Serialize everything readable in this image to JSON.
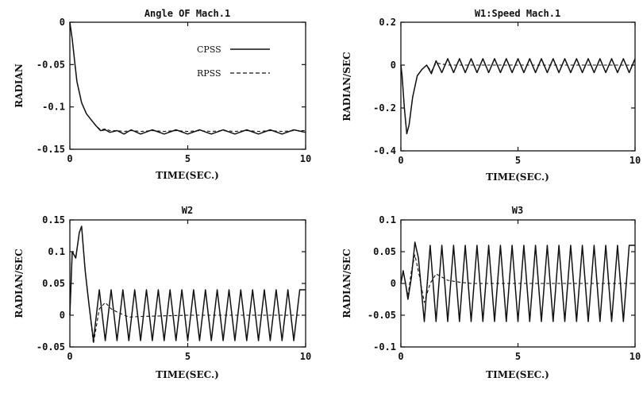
{
  "chart_data": [
    {
      "type": "line",
      "title": "Angle OF Mach.1",
      "xlabel": "TIME(SEC.)",
      "ylabel": "RADIAN",
      "xlim": [
        0,
        10
      ],
      "ylim": [
        -0.15,
        0
      ],
      "xticks": [
        "0",
        "5",
        "10"
      ],
      "yticks": [
        "0",
        "-0.05",
        "-0.1",
        "-0.15"
      ],
      "legend": {
        "position": "top-right",
        "entries": [
          "CPSS",
          "RPSS"
        ]
      },
      "series": [
        {
          "name": "CPSS",
          "style": "solid",
          "x": [
            0,
            0.1,
            0.2,
            0.3,
            0.5,
            0.7,
            0.9,
            1.1,
            1.3,
            1.5,
            1.7,
            2,
            2.3,
            2.6,
            3,
            3.5,
            4,
            4.5,
            5,
            5.5,
            6,
            6.5,
            7,
            7.5,
            8,
            8.5,
            9,
            9.5,
            10
          ],
          "y": [
            0,
            -0.02,
            -0.045,
            -0.07,
            -0.095,
            -0.108,
            -0.115,
            -0.122,
            -0.128,
            -0.127,
            -0.13,
            -0.128,
            -0.132,
            -0.127,
            -0.132,
            -0.127,
            -0.132,
            -0.127,
            -0.132,
            -0.127,
            -0.132,
            -0.127,
            -0.132,
            -0.127,
            -0.132,
            -0.127,
            -0.132,
            -0.127,
            -0.13
          ]
        },
        {
          "name": "RPSS",
          "style": "dashed",
          "x": [
            0,
            0.1,
            0.2,
            0.3,
            0.5,
            0.7,
            0.9,
            1.1,
            1.3,
            1.5,
            1.7,
            2,
            2.3,
            2.6,
            3,
            3.5,
            4,
            4.5,
            5,
            5.5,
            6,
            6.5,
            7,
            7.5,
            8,
            8.5,
            9,
            9.5,
            10
          ],
          "y": [
            0,
            -0.02,
            -0.045,
            -0.07,
            -0.095,
            -0.108,
            -0.115,
            -0.122,
            -0.127,
            -0.126,
            -0.128,
            -0.128,
            -0.129,
            -0.128,
            -0.129,
            -0.128,
            -0.129,
            -0.128,
            -0.129,
            -0.128,
            -0.129,
            -0.128,
            -0.129,
            -0.128,
            -0.129,
            -0.128,
            -0.129,
            -0.128,
            -0.128
          ]
        }
      ]
    },
    {
      "type": "line",
      "title": "W1:Speed Mach.1",
      "xlabel": "TIME(SEC.)",
      "ylabel": "RADIAN/SEC",
      "xlim": [
        0,
        10
      ],
      "ylim": [
        -0.4,
        0.2
      ],
      "xticks": [
        "0",
        "5",
        "10"
      ],
      "yticks": [
        "0.2",
        "0",
        "-0.2",
        "-0.4"
      ],
      "series": [
        {
          "name": "CPSS",
          "style": "solid",
          "x": [
            0,
            0.05,
            0.15,
            0.25,
            0.35,
            0.5,
            0.7,
            0.9,
            1.1,
            1.3,
            1.5,
            1.75,
            2,
            2.25,
            2.5,
            2.75,
            3,
            3.25,
            3.5,
            3.75,
            4,
            4.25,
            4.5,
            4.75,
            5,
            5.25,
            5.5,
            5.75,
            6,
            6.25,
            6.5,
            6.75,
            7,
            7.25,
            7.5,
            7.75,
            8,
            8.25,
            8.5,
            8.75,
            9,
            9.25,
            9.5,
            9.75,
            10
          ],
          "y": [
            0,
            -0.05,
            -0.2,
            -0.32,
            -0.28,
            -0.15,
            -0.05,
            -0.02,
            0.0,
            -0.04,
            0.02,
            -0.035,
            0.03,
            -0.035,
            0.03,
            -0.035,
            0.03,
            -0.035,
            0.03,
            -0.035,
            0.03,
            -0.035,
            0.03,
            -0.035,
            0.03,
            -0.035,
            0.03,
            -0.035,
            0.03,
            -0.035,
            0.03,
            -0.035,
            0.03,
            -0.035,
            0.03,
            -0.035,
            0.03,
            -0.035,
            0.03,
            -0.035,
            0.03,
            -0.035,
            0.03,
            -0.035,
            0.03
          ]
        },
        {
          "name": "RPSS",
          "style": "dashed",
          "x": [
            0,
            0.05,
            0.15,
            0.25,
            0.35,
            0.5,
            0.7,
            0.9,
            1.1,
            1.3,
            1.5,
            1.75,
            2,
            2.5,
            3,
            4,
            5,
            6,
            7,
            8,
            9,
            10
          ],
          "y": [
            0,
            -0.05,
            -0.2,
            -0.32,
            -0.28,
            -0.15,
            -0.05,
            -0.02,
            0.0,
            -0.03,
            0.01,
            0.005,
            0.0,
            0.0,
            0.0,
            0.0,
            0.0,
            0.0,
            0.0,
            0.0,
            0.0,
            0.0
          ]
        }
      ]
    },
    {
      "type": "line",
      "title": "W2",
      "xlabel": "TIME(SEC.)",
      "ylabel": "RADIAN/SEC",
      "xlim": [
        0,
        10
      ],
      "ylim": [
        -0.05,
        0.15
      ],
      "xticks": [
        "0",
        "5",
        "10"
      ],
      "yticks": [
        "0.15",
        "0.1",
        "0.05",
        "0",
        "-0.05"
      ],
      "series": [
        {
          "name": "CPSS",
          "style": "solid",
          "x": [
            0,
            0.1,
            0.25,
            0.4,
            0.5,
            0.65,
            0.8,
            1.0,
            1.25,
            1.5,
            1.75,
            2,
            2.25,
            2.5,
            2.75,
            3,
            3.25,
            3.5,
            3.75,
            4,
            4.25,
            4.5,
            4.75,
            5,
            5.25,
            5.5,
            5.75,
            6,
            6.25,
            6.5,
            6.75,
            7,
            7.25,
            7.5,
            7.75,
            8,
            8.25,
            8.5,
            8.75,
            9,
            9.25,
            9.5,
            9.75,
            10
          ],
          "y": [
            0,
            0.1,
            0.09,
            0.13,
            0.14,
            0.07,
            0.02,
            -0.04,
            0.04,
            -0.04,
            0.04,
            -0.04,
            0.04,
            -0.04,
            0.04,
            -0.04,
            0.04,
            -0.04,
            0.04,
            -0.04,
            0.04,
            -0.04,
            0.04,
            -0.04,
            0.04,
            -0.04,
            0.04,
            -0.04,
            0.04,
            -0.04,
            0.04,
            -0.04,
            0.04,
            -0.04,
            0.04,
            -0.04,
            0.04,
            -0.04,
            0.04,
            -0.04,
            0.04,
            -0.04,
            0.04,
            0.04
          ]
        },
        {
          "name": "RPSS",
          "style": "dashed",
          "x": [
            0,
            0.1,
            0.25,
            0.4,
            0.5,
            0.65,
            0.8,
            1.0,
            1.25,
            1.5,
            1.75,
            2,
            2.5,
            3,
            4,
            5,
            6,
            7,
            8,
            9,
            10
          ],
          "y": [
            0,
            0.1,
            0.09,
            0.13,
            0.14,
            0.07,
            0.02,
            -0.045,
            0.01,
            0.02,
            0.01,
            0.005,
            -0.003,
            -0.002,
            -0.001,
            0,
            0,
            0,
            0,
            0,
            0
          ]
        }
      ]
    },
    {
      "type": "line",
      "title": "W3",
      "xlabel": "TIME(SEC.)",
      "ylabel": "RADIAN/SEC",
      "xlim": [
        0,
        10
      ],
      "ylim": [
        -0.1,
        0.1
      ],
      "xticks": [
        "0",
        "5",
        "10"
      ],
      "yticks": [
        "0.1",
        "0.05",
        "0",
        "-0.05",
        "-0.1"
      ],
      "series": [
        {
          "name": "CPSS",
          "style": "solid",
          "x": [
            0,
            0.1,
            0.2,
            0.3,
            0.45,
            0.6,
            0.75,
            1.0,
            1.25,
            1.5,
            1.75,
            2,
            2.25,
            2.5,
            2.75,
            3,
            3.25,
            3.5,
            3.75,
            4,
            4.25,
            4.5,
            4.75,
            5,
            5.25,
            5.5,
            5.75,
            6,
            6.25,
            6.5,
            6.75,
            7,
            7.25,
            7.5,
            7.75,
            8,
            8.25,
            8.5,
            8.75,
            9,
            9.25,
            9.5,
            9.75,
            10
          ],
          "y": [
            0,
            0.02,
            0.0,
            -0.025,
            0.01,
            0.065,
            0.04,
            -0.06,
            0.06,
            -0.06,
            0.06,
            -0.06,
            0.06,
            -0.06,
            0.06,
            -0.06,
            0.06,
            -0.06,
            0.06,
            -0.06,
            0.06,
            -0.06,
            0.06,
            -0.06,
            0.06,
            -0.06,
            0.06,
            -0.06,
            0.06,
            -0.06,
            0.06,
            -0.06,
            0.06,
            -0.06,
            0.06,
            -0.06,
            0.06,
            -0.06,
            0.06,
            -0.06,
            0.06,
            -0.06,
            0.06,
            0.06
          ]
        },
        {
          "name": "RPSS",
          "style": "dashed",
          "x": [
            0,
            0.1,
            0.2,
            0.3,
            0.45,
            0.6,
            0.8,
            1.0,
            1.25,
            1.5,
            1.75,
            2,
            2.5,
            3,
            4,
            5,
            6,
            7,
            8,
            9,
            10
          ],
          "y": [
            0,
            0.02,
            0.0,
            -0.02,
            0.02,
            0.045,
            0.01,
            -0.03,
            0.0,
            0.015,
            0.01,
            0.005,
            0.002,
            0.0,
            0,
            0,
            0,
            0,
            0,
            0,
            0
          ]
        }
      ]
    }
  ]
}
